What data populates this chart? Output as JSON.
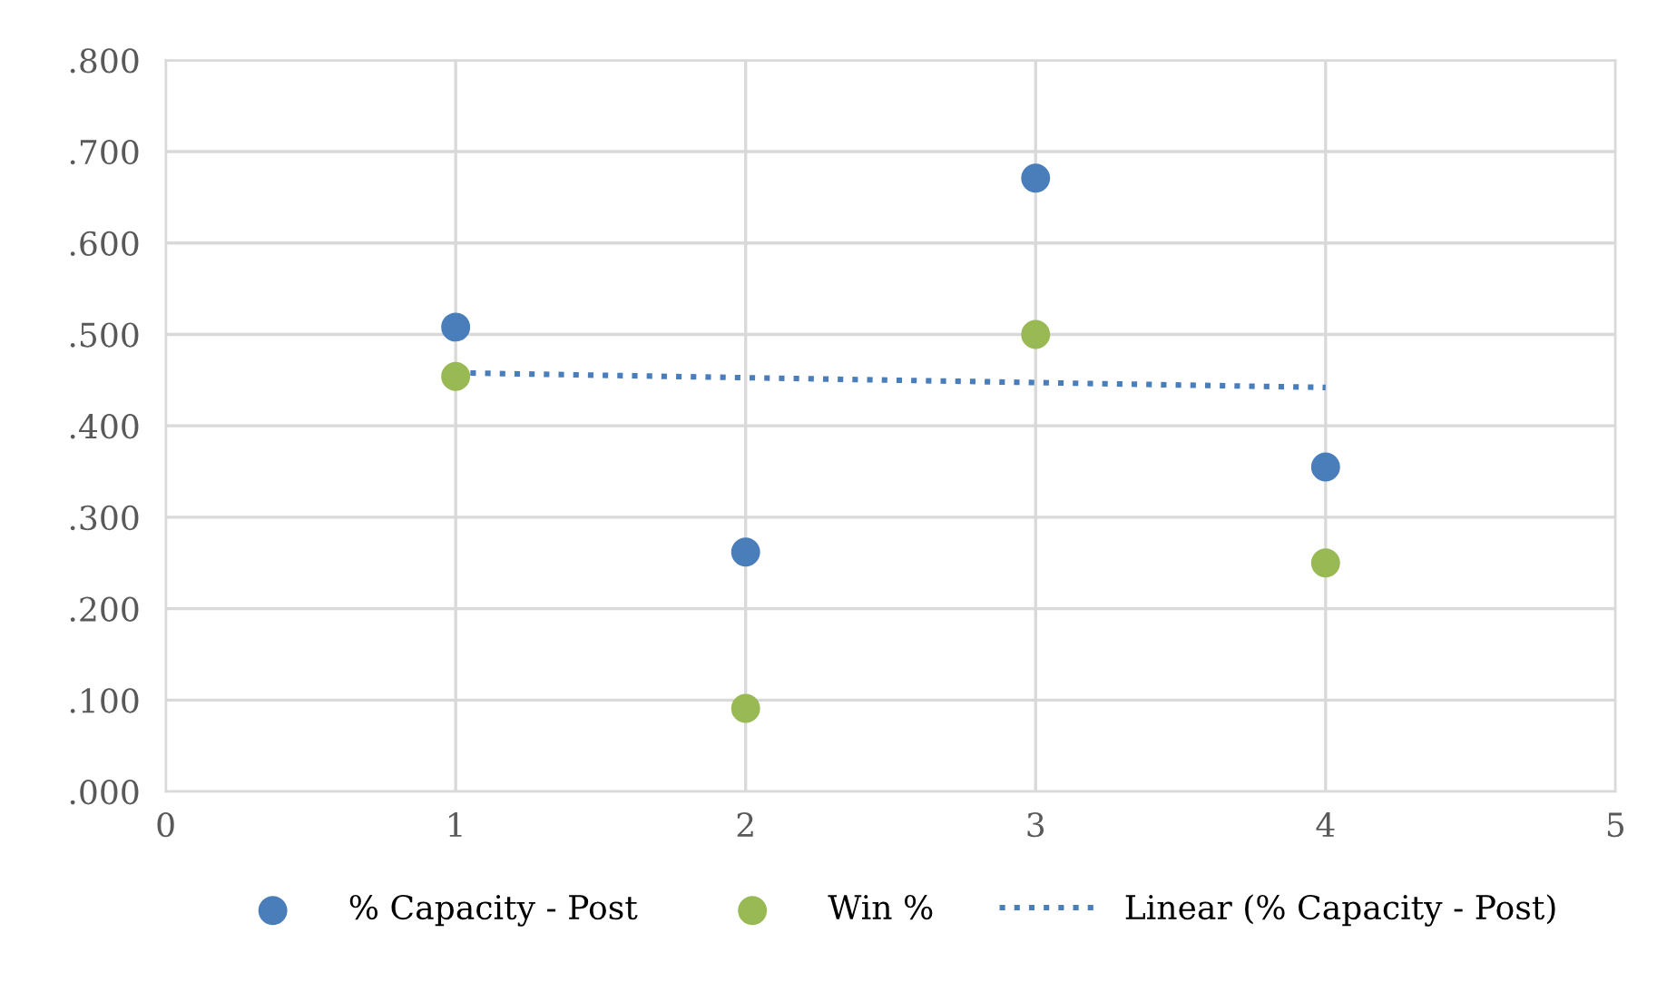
{
  "chart_data": {
    "type": "scatter",
    "x": [
      1,
      2,
      3,
      4
    ],
    "series": [
      {
        "name": "% Capacity - Post",
        "color": "#4a7ebb",
        "values": [
          0.508,
          0.262,
          0.671,
          0.355
        ]
      },
      {
        "name": "Win %",
        "color": "#98b954",
        "values": [
          0.454,
          0.091,
          0.5,
          0.25
        ]
      },
      {
        "name": "Linear (% Capacity - Post)",
        "type": "line",
        "color": "#4a7ebb",
        "line_style": "dotted",
        "marker": "none",
        "x": [
          1,
          4
        ],
        "values": [
          0.458,
          0.442
        ]
      }
    ],
    "xlim": [
      0,
      5
    ],
    "xticks": [
      0,
      1,
      2,
      3,
      4,
      5
    ],
    "ylim": [
      0,
      0.8
    ],
    "yticks": [
      {
        "value": 0,
        "label": ".000"
      },
      {
        "value": 0.1,
        "label": ".100"
      },
      {
        "value": 0.2,
        "label": ".200"
      },
      {
        "value": 0.3,
        "label": ".300"
      },
      {
        "value": 0.4,
        "label": ".400"
      },
      {
        "value": 0.5,
        "label": ".500"
      },
      {
        "value": 0.6,
        "label": ".600"
      },
      {
        "value": 0.7,
        "label": ".700"
      },
      {
        "value": 0.8,
        "label": ".800"
      }
    ],
    "grid": true,
    "legend": "bottom",
    "marker": "circle"
  }
}
